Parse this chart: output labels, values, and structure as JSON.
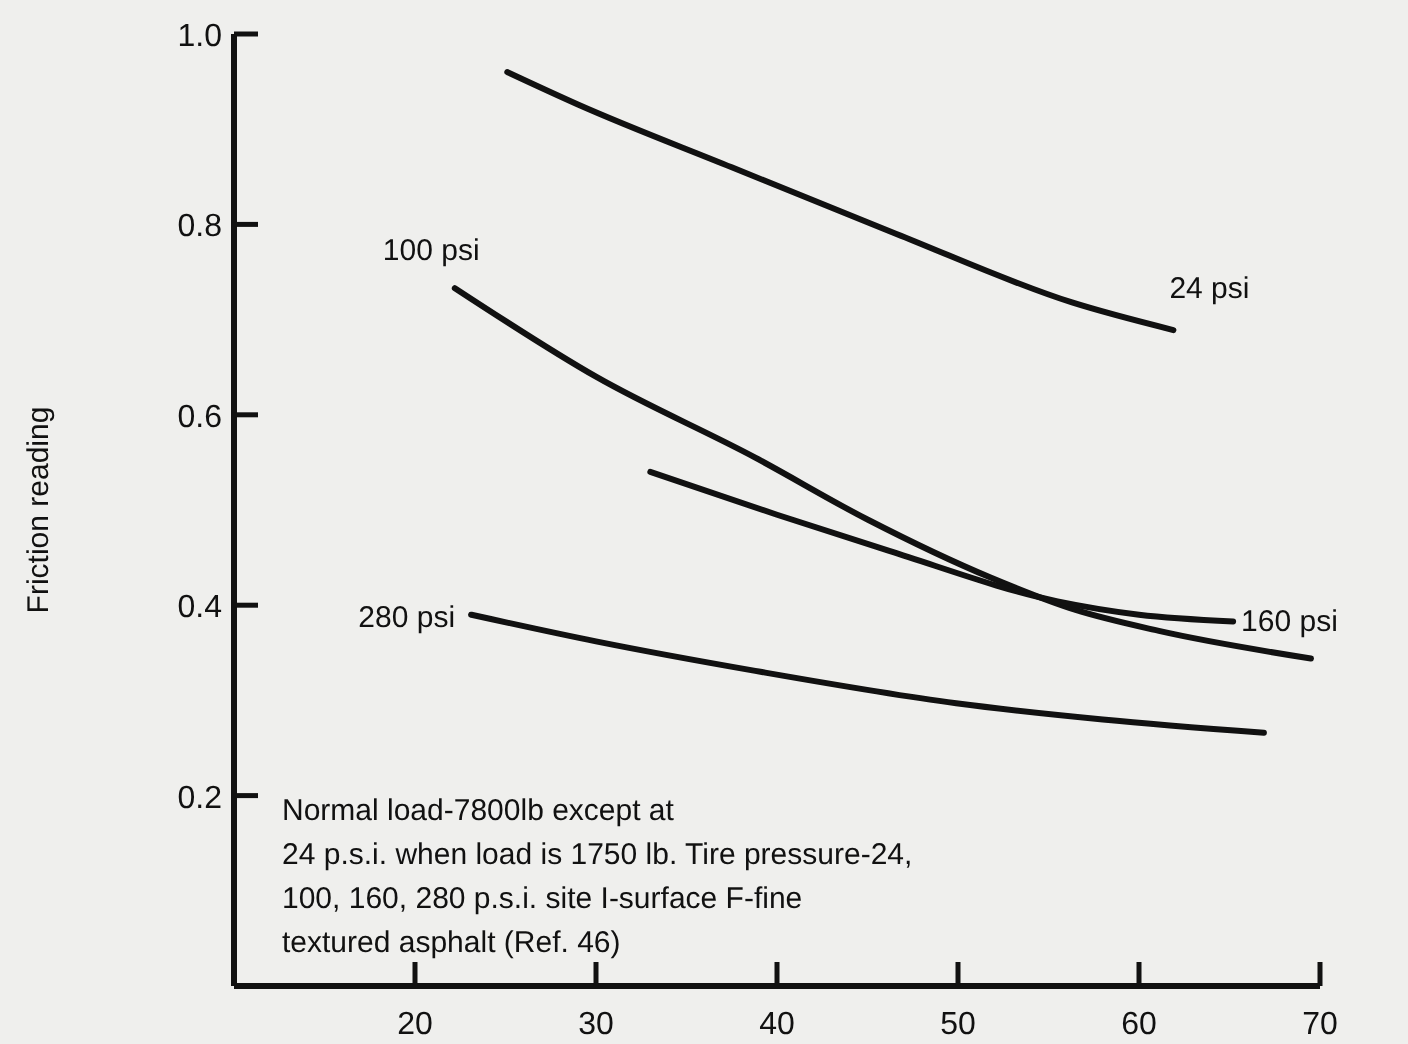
{
  "chart_data": {
    "type": "line",
    "ylabel": "Friction reading",
    "xlim": [
      10,
      70
    ],
    "xticks": [
      20,
      30,
      40,
      50,
      60,
      70
    ],
    "ylim": [
      0,
      1.0
    ],
    "yticks": [
      {
        "value": 0.2,
        "label": "0.2"
      },
      {
        "value": 0.4,
        "label": "0.4"
      },
      {
        "value": 0.6,
        "label": "0.6"
      },
      {
        "value": 0.8,
        "label": "0.8"
      },
      {
        "value": 1.0,
        "label": "1.0"
      }
    ],
    "grid": false,
    "marker": "none",
    "line_style": "solid",
    "series": [
      {
        "name": "24 psi",
        "color": "#111111",
        "x": [
          25.1,
          29.0,
          37.5,
          46.6,
          56.3,
          61.9
        ],
        "values": [
          0.96,
          0.926,
          0.86,
          0.79,
          0.718,
          0.689
        ]
      },
      {
        "name": "100 psi",
        "color": "#111111",
        "x": [
          22.2,
          30.0,
          38.8,
          45.0,
          51.8,
          56.5,
          61.1,
          69.5
        ],
        "values": [
          0.733,
          0.64,
          0.555,
          0.49,
          0.429,
          0.395,
          0.373,
          0.344
        ]
      },
      {
        "name": "160 psi",
        "color": "#111111",
        "x": [
          33.0,
          40.0,
          46.2,
          55.5,
          60.0,
          65.2
        ],
        "values": [
          0.54,
          0.495,
          0.457,
          0.404,
          0.39,
          0.383
        ]
      },
      {
        "name": "280 psi",
        "color": "#111111",
        "x": [
          23.1,
          30.0,
          38.8,
          49.9,
          58.0,
          66.9
        ],
        "values": [
          0.39,
          0.362,
          0.331,
          0.297,
          0.28,
          0.266
        ]
      }
    ],
    "annotations": [
      "Normal load-7800lb except at\n24 p.s.i. when load is 1750 lb. Tire pressure-24,\n100, 160, 280 p.s.i. site I-surface F-fine\ntextured asphalt (Ref. 46)"
    ]
  }
}
